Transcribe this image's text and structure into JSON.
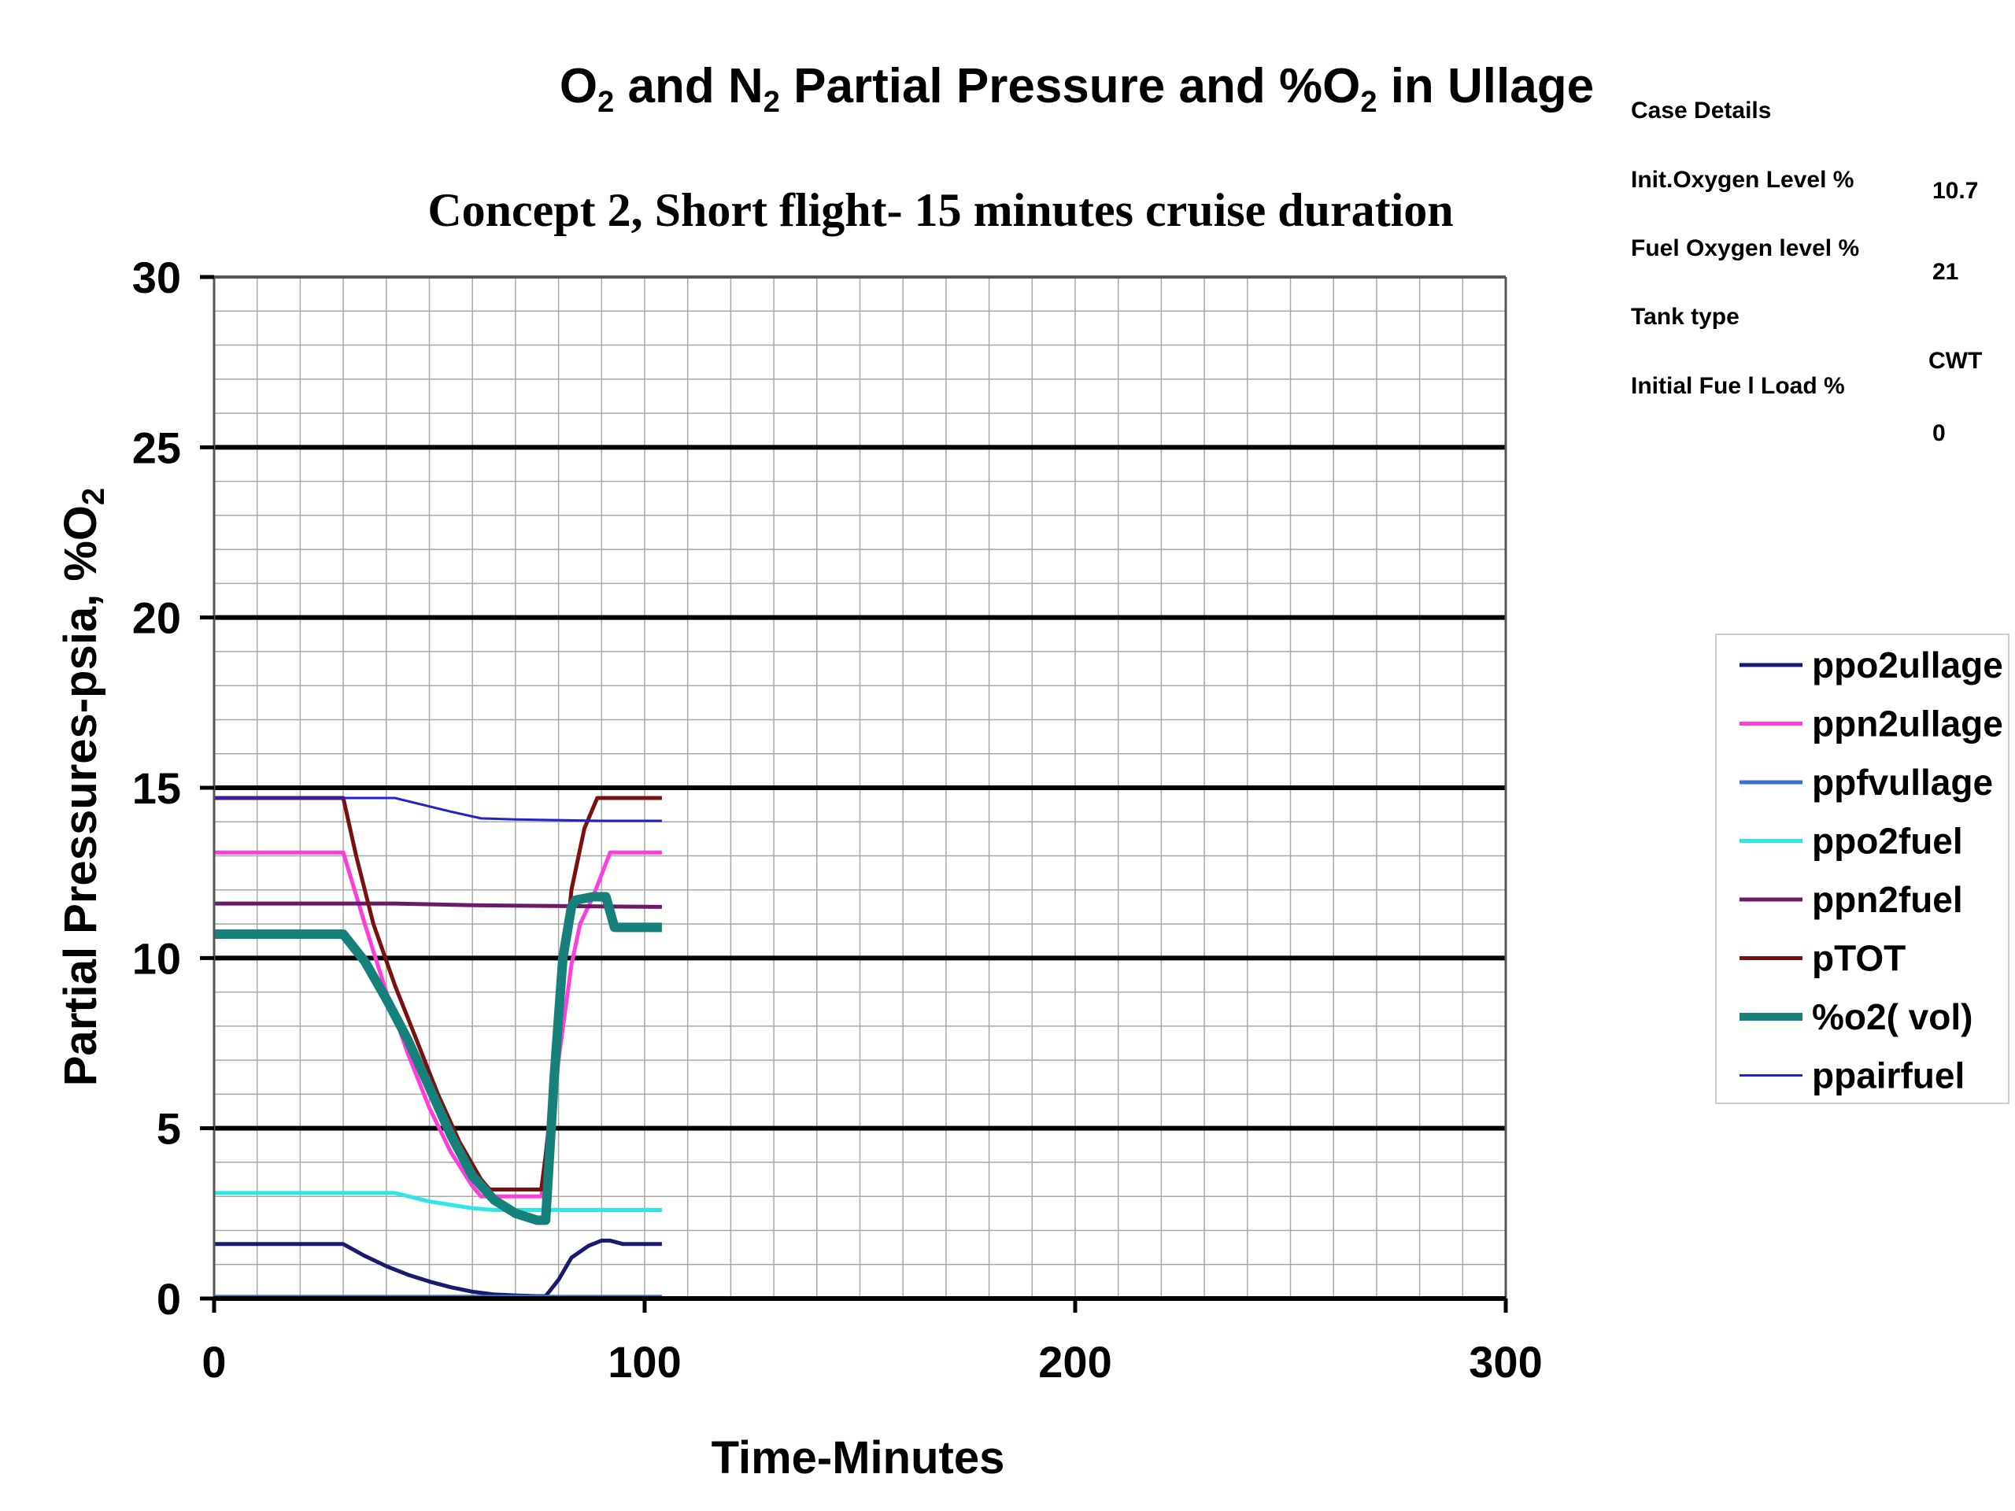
{
  "chart_data": {
    "type": "line",
    "title": {
      "pre": "O",
      "sub1": "2",
      "mid": " and N",
      "sub2": "2",
      "mid2": " Partial Pressure and %O",
      "sub3": "2",
      "post": " in Ullage"
    },
    "subtitle": "Concept 2, Short flight- 15 minutes cruise duration",
    "xlabel": "Time-Minutes",
    "ylabel": {
      "main": "Partial Pressures-psia, %O",
      "sub": "2"
    },
    "xlim": [
      0,
      300
    ],
    "ylim": [
      0,
      30
    ],
    "x_ticks": [
      0,
      100,
      200,
      300
    ],
    "y_ticks": [
      0,
      5,
      10,
      15,
      20,
      25,
      30
    ],
    "x_tick_labels": [
      "0",
      "100",
      "200",
      "300"
    ],
    "y_tick_labels": [
      "0",
      "5",
      "10",
      "15",
      "20",
      "25",
      "30"
    ],
    "grid": true,
    "legend_position": "right",
    "series": [
      {
        "name": "ppo2ullage",
        "color": "#1a1a6e",
        "width": 5,
        "x": [
          0,
          30,
          35,
          40,
          45,
          50,
          55,
          60,
          65,
          70,
          75,
          77,
          80,
          83,
          87,
          90,
          92,
          95,
          104
        ],
        "y": [
          1.6,
          1.6,
          1.25,
          0.95,
          0.7,
          0.5,
          0.33,
          0.2,
          0.12,
          0.09,
          0.07,
          0.07,
          0.55,
          1.2,
          1.55,
          1.7,
          1.7,
          1.6,
          1.6
        ]
      },
      {
        "name": "ppn2ullage",
        "color": "#ff3dd8",
        "width": 5,
        "x": [
          0,
          30,
          35,
          40,
          45,
          50,
          55,
          60,
          62,
          70,
          76,
          78,
          80,
          83,
          85,
          88,
          92,
          104
        ],
        "y": [
          13.1,
          13.1,
          11.0,
          9.0,
          7.2,
          5.6,
          4.3,
          3.3,
          3.0,
          3.0,
          3.0,
          4.5,
          7.0,
          9.8,
          11.0,
          11.8,
          13.1,
          13.1
        ]
      },
      {
        "name": "ppfvullage",
        "color": "#3a6fd8",
        "width": 5,
        "x": [
          0,
          104
        ],
        "y": [
          0.05,
          0.05
        ]
      },
      {
        "name": "ppo2fuel",
        "color": "#2ee6e6",
        "width": 5,
        "x": [
          0,
          42,
          50,
          60,
          65,
          104
        ],
        "y": [
          3.1,
          3.1,
          2.85,
          2.65,
          2.6,
          2.6
        ]
      },
      {
        "name": "ppn2fuel",
        "color": "#6a1a6a",
        "width": 5,
        "x": [
          0,
          42,
          60,
          104
        ],
        "y": [
          11.6,
          11.6,
          11.55,
          11.5
        ]
      },
      {
        "name": "pTOT",
        "color": "#7a1010",
        "width": 5,
        "x": [
          0,
          30,
          33,
          37,
          42,
          47,
          52,
          57,
          62,
          64,
          70,
          76,
          77,
          79,
          81,
          83,
          86,
          89,
          93,
          104
        ],
        "y": [
          14.7,
          14.7,
          13.0,
          11.0,
          9.2,
          7.6,
          6.0,
          4.6,
          3.5,
          3.2,
          3.2,
          3.2,
          4.2,
          6.5,
          9.5,
          12.0,
          13.8,
          14.7,
          14.7,
          14.7
        ]
      },
      {
        "name": "%o2( vol)",
        "color": "#16807a",
        "width": 12,
        "x": [
          0,
          30,
          35,
          40,
          45,
          50,
          55,
          60,
          65,
          70,
          75,
          77,
          79,
          81,
          83,
          84,
          86,
          88,
          90,
          91,
          93,
          95,
          104
        ],
        "y": [
          10.7,
          10.7,
          9.9,
          8.8,
          7.6,
          6.2,
          4.8,
          3.6,
          2.9,
          2.5,
          2.3,
          2.3,
          6.5,
          10.0,
          11.5,
          11.7,
          11.75,
          11.8,
          11.8,
          11.8,
          10.9,
          10.9,
          10.9
        ]
      },
      {
        "name": "ppairfuel",
        "color": "#2222cc",
        "width": 3,
        "x": [
          0,
          42,
          55,
          62,
          70,
          80,
          90,
          104
        ],
        "y": [
          14.7,
          14.7,
          14.3,
          14.1,
          14.07,
          14.05,
          14.03,
          14.03
        ]
      }
    ]
  },
  "case_details": {
    "heading": "Case Details",
    "rows": [
      {
        "label": "Init.Oxygen Level %",
        "value": "10.7"
      },
      {
        "label": "Fuel Oxygen level %",
        "value": "21"
      },
      {
        "label": "Tank type",
        "value": "CWT"
      },
      {
        "label": "Initial Fue l Load %",
        "value": "0"
      }
    ]
  }
}
